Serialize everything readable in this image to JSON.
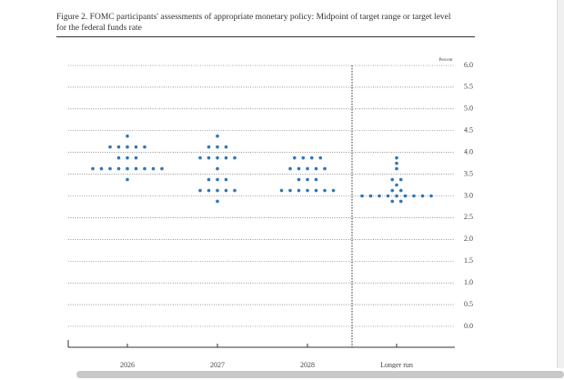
{
  "chart_data": {
    "type": "dot_plot",
    "title": "Figure 2. FOMC participants' assessments of appropriate monetary policy: Midpoint of target range or target level for the federal funds rate",
    "y_label": "Percent",
    "categories": [
      "2026",
      "2027",
      "2028",
      "Longer run"
    ],
    "values": [
      [
        4.375,
        4.125,
        4.125,
        4.125,
        4.125,
        4.125,
        3.875,
        3.875,
        3.875,
        3.625,
        3.625,
        3.625,
        3.625,
        3.625,
        3.625,
        3.625,
        3.625,
        3.625,
        3.375
      ],
      [
        4.375,
        4.125,
        4.125,
        4.125,
        3.875,
        3.875,
        3.875,
        3.875,
        3.875,
        3.625,
        3.375,
        3.375,
        3.375,
        3.125,
        3.125,
        3.125,
        3.125,
        3.125,
        2.875
      ],
      [
        3.875,
        3.875,
        3.875,
        3.875,
        3.625,
        3.625,
        3.625,
        3.625,
        3.625,
        3.375,
        3.375,
        3.375,
        3.125,
        3.125,
        3.125,
        3.125,
        3.125,
        3.125,
        3.125
      ],
      [
        3.875,
        3.75,
        3.625,
        3.375,
        3.375,
        3.25,
        3.125,
        3.125,
        3.0,
        3.0,
        3.0,
        3.0,
        3.0,
        3.0,
        3.0,
        3.0,
        3.0,
        2.875,
        2.875
      ]
    ],
    "color": "#2f76b8",
    "ylim": [
      -0.25,
      6.0
    ],
    "yticks": [
      {
        "value": 0,
        "label": "0.0"
      },
      {
        "value": 0.5,
        "label": "0.5"
      },
      {
        "value": 1,
        "label": "1.0"
      },
      {
        "value": 1.5,
        "label": "1.5"
      },
      {
        "value": 2,
        "label": "2.0"
      },
      {
        "value": 2.5,
        "label": "2.5"
      },
      {
        "value": 3,
        "label": "3.0"
      },
      {
        "value": 3.5,
        "label": "3.5"
      },
      {
        "value": 4,
        "label": "4.0"
      },
      {
        "value": 4.5,
        "label": "4.5"
      },
      {
        "value": 5,
        "label": "5.0"
      },
      {
        "value": 5.5,
        "label": "5.5"
      },
      {
        "value": 6,
        "label": "6.0"
      }
    ],
    "grid": true
  }
}
